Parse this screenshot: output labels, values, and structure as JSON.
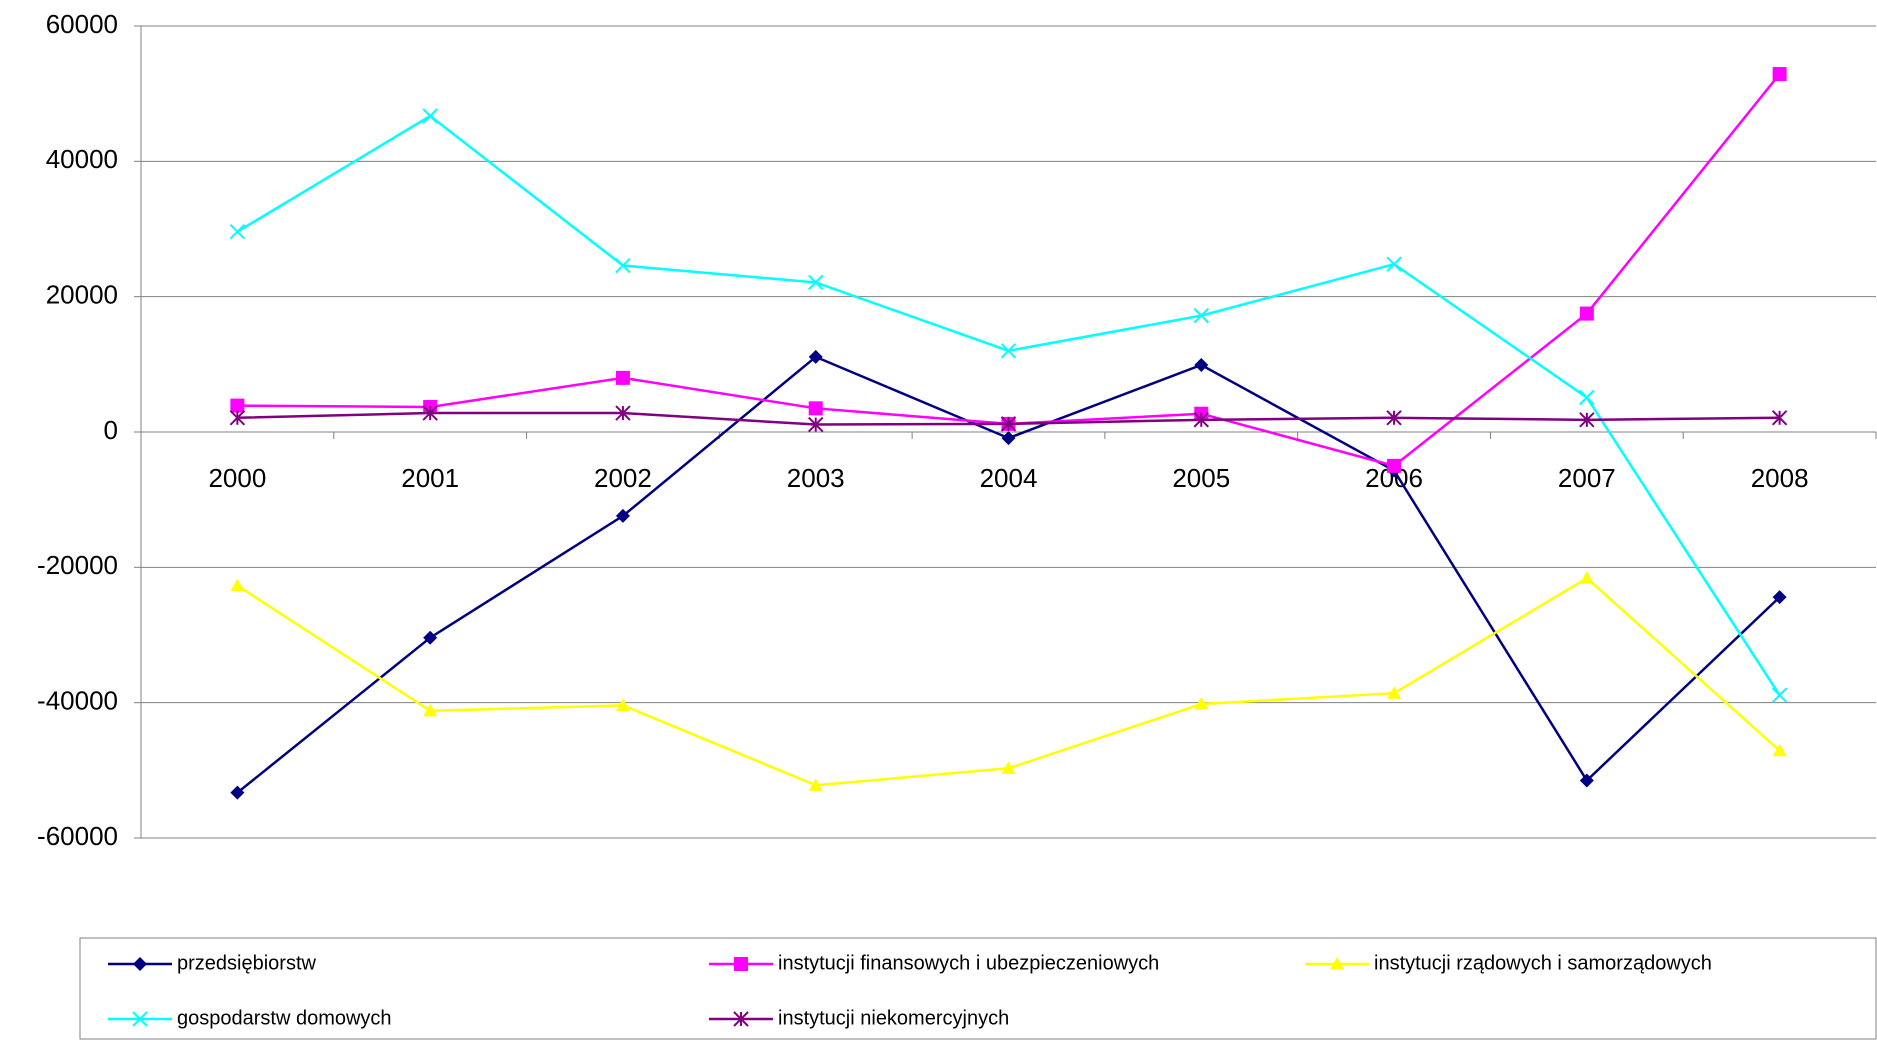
{
  "chart_data": {
    "type": "line",
    "categories": [
      "2000",
      "2001",
      "2002",
      "2003",
      "2004",
      "2005",
      "2006",
      "2007",
      "2008"
    ],
    "series": [
      {
        "name": "przedsiębiorstw",
        "color": "#000080",
        "marker": "diamond",
        "values": [
          -53300,
          -30400,
          -12400,
          11100,
          -900,
          9900,
          -5700,
          -51500,
          -24400
        ]
      },
      {
        "name": "instytucji finansowych i ubezpieczeniowych",
        "color": "#FF00FF",
        "marker": "square",
        "values": [
          3900,
          3700,
          8000,
          3500,
          1200,
          2700,
          -5000,
          17500,
          52900
        ]
      },
      {
        "name": "instytucji rządowych i samorządowych",
        "color": "#FFFF00",
        "marker": "triangle",
        "values": [
          -22700,
          -41200,
          -40400,
          -52200,
          -49700,
          -40200,
          -38600,
          -21600,
          -47100
        ]
      },
      {
        "name": "gospodarstw domowych",
        "color": "#00FFFF",
        "marker": "x",
        "values": [
          29600,
          46700,
          24600,
          22100,
          12000,
          17200,
          24800,
          5100,
          -38900
        ]
      },
      {
        "name": "instytucji niekomercyjnych",
        "color": "#800080",
        "marker": "star",
        "values": [
          2100,
          2800,
          2800,
          1100,
          1200,
          1800,
          2100,
          1800,
          2100
        ]
      }
    ],
    "ylim": [
      -60000,
      60000
    ],
    "yticks": [
      -60000,
      -40000,
      -20000,
      0,
      20000,
      40000,
      60000
    ],
    "grid": true,
    "legend": "bottom"
  }
}
